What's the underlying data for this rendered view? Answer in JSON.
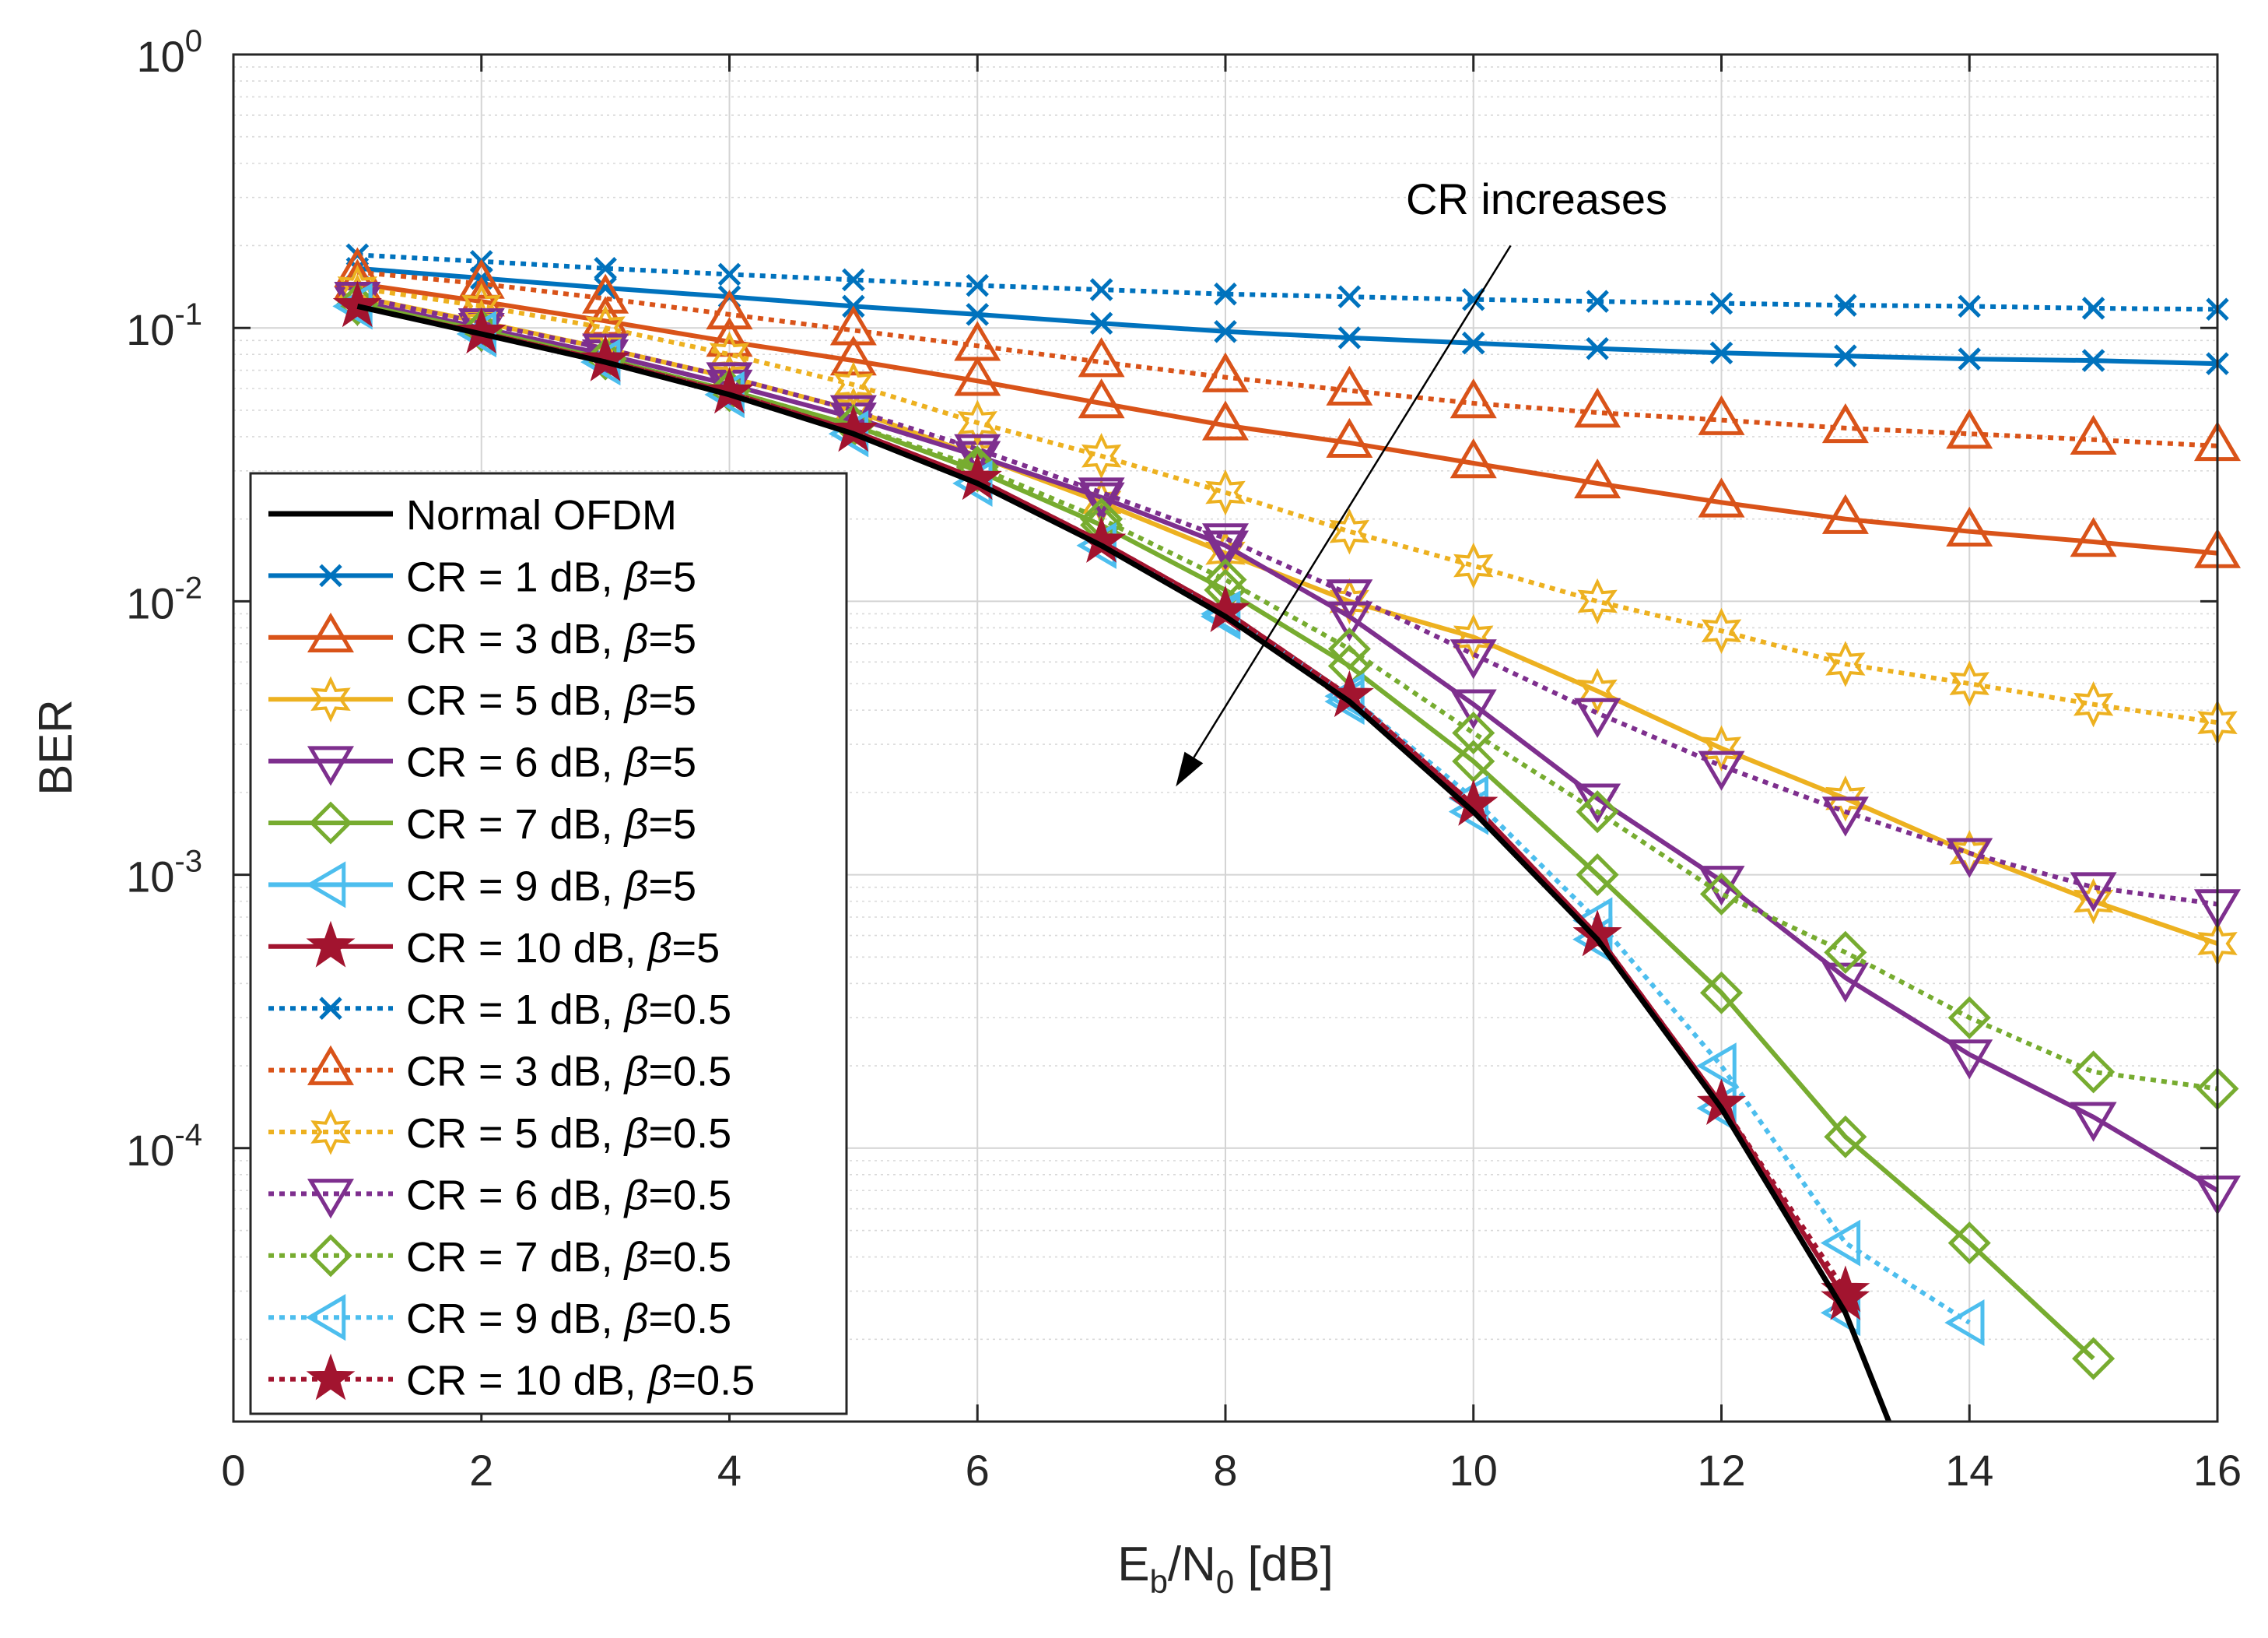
{
  "chart_data": {
    "type": "line",
    "title": "",
    "xlabel": {
      "main": "E",
      "sub1": "b",
      "slash": "/N",
      "sub2": "0",
      "unit": " [dB]"
    },
    "ylabel": "BER",
    "xlim": [
      0,
      16
    ],
    "ylim": [
      1e-05,
      1
    ],
    "yscale": "log",
    "xticks": [
      0,
      2,
      4,
      6,
      8,
      10,
      12,
      14,
      16
    ],
    "xtick_labels": [
      "0",
      "2",
      "4",
      "6",
      "8",
      "10",
      "12",
      "14",
      "16"
    ],
    "yticks": [
      {
        "value": 1,
        "base": "10",
        "exp": "0"
      },
      {
        "value": 0.1,
        "base": "10",
        "exp": "-1"
      },
      {
        "value": 0.01,
        "base": "10",
        "exp": "-2"
      },
      {
        "value": 0.001,
        "base": "10",
        "exp": "-3"
      },
      {
        "value": 0.0001,
        "base": "10",
        "exp": "-4"
      }
    ],
    "grid": true,
    "minor_grid": true,
    "legend_position": "bottom-left",
    "annotation": {
      "text": "CR increases",
      "arrow_from": [
        10.3,
        0.2
      ],
      "arrow_to": [
        7.6,
        0.0021
      ]
    },
    "series": [
      {
        "label": "Normal OFDM",
        "name": "Normal OFDM",
        "color": "#000000",
        "marker": "none",
        "dash": "solid",
        "x": [
          1,
          2,
          3,
          4,
          5,
          6,
          7,
          8,
          9,
          10,
          11,
          12,
          13,
          13.35
        ],
        "y": [
          0.12,
          0.095,
          0.075,
          0.057,
          0.041,
          0.027,
          0.016,
          0.0088,
          0.0043,
          0.0017,
          0.00058,
          0.00014,
          2.5e-05,
          1e-05
        ]
      },
      {
        "label": "CR = 1 dB, ",
        "name": "CR = 1 dB, β=5",
        "beta": "5",
        "color": "#0072BD",
        "marker": "x",
        "dash": "solid",
        "x": [
          1,
          2,
          3,
          4,
          5,
          6,
          7,
          8,
          9,
          10,
          11,
          12,
          13,
          14,
          15,
          16
        ],
        "y": [
          0.165,
          0.152,
          0.14,
          0.13,
          0.12,
          0.112,
          0.104,
          0.097,
          0.092,
          0.088,
          0.084,
          0.081,
          0.079,
          0.077,
          0.076,
          0.074
        ]
      },
      {
        "label": "CR = 3 dB, ",
        "name": "CR = 3 dB, β=5",
        "beta": "5",
        "color": "#D95319",
        "marker": "triangle-up",
        "dash": "solid",
        "x": [
          1,
          2,
          3,
          4,
          5,
          6,
          7,
          8,
          9,
          10,
          11,
          12,
          13,
          14,
          15,
          16
        ],
        "y": [
          0.145,
          0.125,
          0.106,
          0.089,
          0.076,
          0.064,
          0.053,
          0.044,
          0.038,
          0.032,
          0.027,
          0.023,
          0.02,
          0.018,
          0.0165,
          0.015
        ]
      },
      {
        "label": "CR = 5 dB, ",
        "name": "CR = 5 dB, β=5",
        "beta": "5",
        "color": "#EDB120",
        "marker": "hexagram",
        "dash": "solid",
        "x": [
          1,
          2,
          3,
          4,
          5,
          6,
          7,
          8,
          9,
          10,
          11,
          12,
          13,
          14,
          15,
          16
        ],
        "y": [
          0.13,
          0.105,
          0.084,
          0.066,
          0.05,
          0.034,
          0.023,
          0.015,
          0.01,
          0.0074,
          0.0047,
          0.0029,
          0.0019,
          0.0012,
          0.0008,
          0.00056
        ]
      },
      {
        "label": "CR = 6 dB, ",
        "name": "CR = 6 dB, β=5",
        "beta": "5",
        "color": "#7E2F8E",
        "marker": "triangle-down",
        "dash": "solid",
        "x": [
          1,
          2,
          3,
          4,
          5,
          6,
          7,
          8,
          9,
          10,
          11,
          12,
          13,
          14,
          15,
          16
        ],
        "y": [
          0.125,
          0.1,
          0.08,
          0.062,
          0.047,
          0.034,
          0.024,
          0.016,
          0.0088,
          0.0042,
          0.0019,
          0.00095,
          0.00042,
          0.00022,
          0.00013,
          7e-05
        ]
      },
      {
        "label": "CR = 7 dB, ",
        "name": "CR = 7 dB, β=5",
        "beta": "5",
        "color": "#77AC30",
        "marker": "diamond",
        "dash": "solid",
        "x": [
          1,
          2,
          3,
          4,
          5,
          6,
          7,
          8,
          9,
          10,
          11,
          12,
          13,
          14,
          15
        ],
        "y": [
          0.122,
          0.098,
          0.077,
          0.059,
          0.044,
          0.03,
          0.019,
          0.011,
          0.0058,
          0.0026,
          0.001,
          0.00037,
          0.00011,
          4.5e-05,
          1.7e-05
        ]
      },
      {
        "label": "CR = 9 dB, ",
        "name": "CR = 9 dB, β=5",
        "beta": "5",
        "color": "#4DBEEE",
        "marker": "triangle-left",
        "dash": "solid",
        "x": [
          1,
          2,
          3,
          4,
          5,
          6,
          7,
          8,
          9,
          10,
          11,
          12,
          13
        ],
        "y": [
          0.12,
          0.095,
          0.075,
          0.057,
          0.041,
          0.027,
          0.016,
          0.0088,
          0.0043,
          0.0017,
          0.00058,
          0.00014,
          2.5e-05
        ]
      },
      {
        "label": "CR = 10 dB, ",
        "name": "CR = 10 dB, β=5",
        "beta": "5",
        "color": "#A2142F",
        "marker": "pentagram",
        "dash": "solid",
        "x": [
          1,
          2,
          3,
          4,
          5,
          6,
          7,
          8,
          9,
          10,
          11,
          12,
          13
        ],
        "y": [
          0.12,
          0.096,
          0.076,
          0.058,
          0.042,
          0.028,
          0.0165,
          0.0092,
          0.0045,
          0.0018,
          0.0006,
          0.000145,
          2.8e-05
        ]
      },
      {
        "label": "CR = 1 dB, ",
        "name": "CR = 1 dB, β=0.5",
        "beta": "0.5",
        "color": "#0072BD",
        "marker": "x",
        "dash": "dotted",
        "x": [
          1,
          2,
          3,
          4,
          5,
          6,
          7,
          8,
          9,
          10,
          11,
          12,
          13,
          14,
          15,
          16
        ],
        "y": [
          0.185,
          0.175,
          0.165,
          0.157,
          0.15,
          0.143,
          0.138,
          0.133,
          0.13,
          0.127,
          0.125,
          0.123,
          0.121,
          0.12,
          0.118,
          0.117
        ]
      },
      {
        "label": "CR = 3 dB, ",
        "name": "CR = 3 dB, β=0.5",
        "beta": "0.5",
        "color": "#D95319",
        "marker": "triangle-up",
        "dash": "dotted",
        "x": [
          1,
          2,
          3,
          4,
          5,
          6,
          7,
          8,
          9,
          10,
          11,
          12,
          13,
          14,
          15,
          16
        ],
        "y": [
          0.16,
          0.145,
          0.128,
          0.112,
          0.098,
          0.086,
          0.075,
          0.066,
          0.059,
          0.053,
          0.049,
          0.046,
          0.043,
          0.041,
          0.039,
          0.037
        ]
      },
      {
        "label": "CR = 5 dB, ",
        "name": "CR = 5 dB, β=0.5",
        "beta": "0.5",
        "color": "#EDB120",
        "marker": "hexagram",
        "dash": "dotted",
        "x": [
          1,
          2,
          3,
          4,
          5,
          6,
          7,
          8,
          9,
          10,
          11,
          12,
          13,
          14,
          15,
          16
        ],
        "y": [
          0.14,
          0.12,
          0.1,
          0.08,
          0.062,
          0.045,
          0.034,
          0.025,
          0.018,
          0.0135,
          0.01,
          0.0078,
          0.0059,
          0.005,
          0.0042,
          0.0036
        ]
      },
      {
        "label": "CR = 6 dB, ",
        "name": "CR = 6 dB, β=0.5",
        "beta": "0.5",
        "color": "#7E2F8E",
        "marker": "triangle-down",
        "dash": "dotted",
        "x": [
          1,
          2,
          3,
          4,
          5,
          6,
          7,
          8,
          9,
          10,
          11,
          12,
          13,
          14,
          15,
          16
        ],
        "y": [
          0.13,
          0.104,
          0.084,
          0.066,
          0.05,
          0.036,
          0.025,
          0.017,
          0.0106,
          0.0064,
          0.0039,
          0.0025,
          0.0017,
          0.0012,
          0.0009,
          0.00078
        ]
      },
      {
        "label": "CR = 7 dB, ",
        "name": "CR = 7 dB, β=0.5",
        "beta": "0.5",
        "color": "#77AC30",
        "marker": "diamond",
        "dash": "dotted",
        "x": [
          1,
          2,
          3,
          4,
          5,
          6,
          7,
          8,
          9,
          10,
          11,
          12,
          13,
          14,
          15,
          16
        ],
        "y": [
          0.122,
          0.098,
          0.077,
          0.059,
          0.044,
          0.031,
          0.02,
          0.012,
          0.0067,
          0.0033,
          0.0017,
          0.00085,
          0.00052,
          0.0003,
          0.00019,
          0.000165
        ]
      },
      {
        "label": "CR = 9 dB, ",
        "name": "CR = 9 dB, β=0.5",
        "beta": "0.5",
        "color": "#4DBEEE",
        "marker": "triangle-left",
        "dash": "dotted",
        "x": [
          1,
          2,
          3,
          4,
          5,
          6,
          7,
          8,
          9,
          10,
          11,
          12,
          13,
          14
        ],
        "y": [
          0.12,
          0.095,
          0.075,
          0.057,
          0.041,
          0.027,
          0.016,
          0.009,
          0.0045,
          0.0019,
          0.00068,
          0.0002,
          4.5e-05,
          2.3e-05
        ]
      },
      {
        "label": "CR = 10 dB, ",
        "name": "CR = 10 dB, β=0.5",
        "beta": "0.5",
        "color": "#A2142F",
        "marker": "pentagram",
        "dash": "dotted",
        "x": [
          1,
          2,
          3,
          4,
          5,
          6,
          7,
          8,
          9,
          10,
          11,
          12,
          13
        ],
        "y": [
          0.12,
          0.096,
          0.076,
          0.058,
          0.042,
          0.028,
          0.0165,
          0.0092,
          0.0045,
          0.0018,
          0.0006,
          0.000145,
          3e-05
        ]
      }
    ]
  }
}
